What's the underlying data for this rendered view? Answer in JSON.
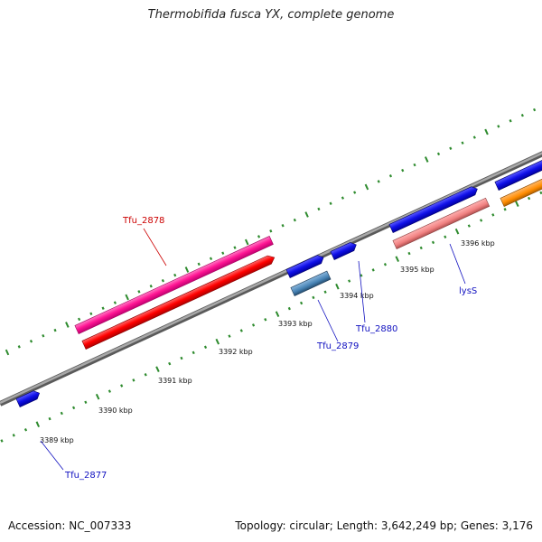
{
  "title": "Thermobifida fusca YX, complete genome",
  "footer": {
    "accession": "Accession: NC_007333",
    "summary": "Topology: circular; Length: 3,642,249 bp; Genes: 3,176"
  },
  "colors": {
    "backbone": "#8a8a8a",
    "ticks": "#2e8b2e",
    "gene_blue": "#1010e8",
    "gene_red": "#ff0000",
    "gene_pink": "#ff1493",
    "gene_salmon": "#f08080",
    "gene_steel": "#4682b4",
    "gene_orange": "#ff8c00",
    "label_blue": "#1010c0",
    "label_red": "#cc0000"
  },
  "chart_data": {
    "type": "linear-genome-map",
    "unit": "kbp",
    "scale_labels": [
      {
        "kbp": 3389,
        "text": "3389 kbp"
      },
      {
        "kbp": 3390,
        "text": "3390 kbp"
      },
      {
        "kbp": 3391,
        "text": "3391 kbp"
      },
      {
        "kbp": 3392,
        "text": "3392 kbp"
      },
      {
        "kbp": 3393,
        "text": "3393 kbp"
      },
      {
        "kbp": 3394,
        "text": "3394 kbp"
      },
      {
        "kbp": 3395,
        "text": "3395 kbp"
      },
      {
        "kbp": 3396,
        "text": "3396 kbp"
      }
    ],
    "gene_labels": [
      {
        "name": "Tfu_2877",
        "color": "label_blue"
      },
      {
        "name": "Tfu_2878",
        "color": "label_red"
      },
      {
        "name": "Tfu_2879",
        "color": "label_blue"
      },
      {
        "name": "Tfu_2880",
        "color": "label_blue"
      },
      {
        "name": "lysS",
        "color": "label_blue"
      }
    ]
  }
}
